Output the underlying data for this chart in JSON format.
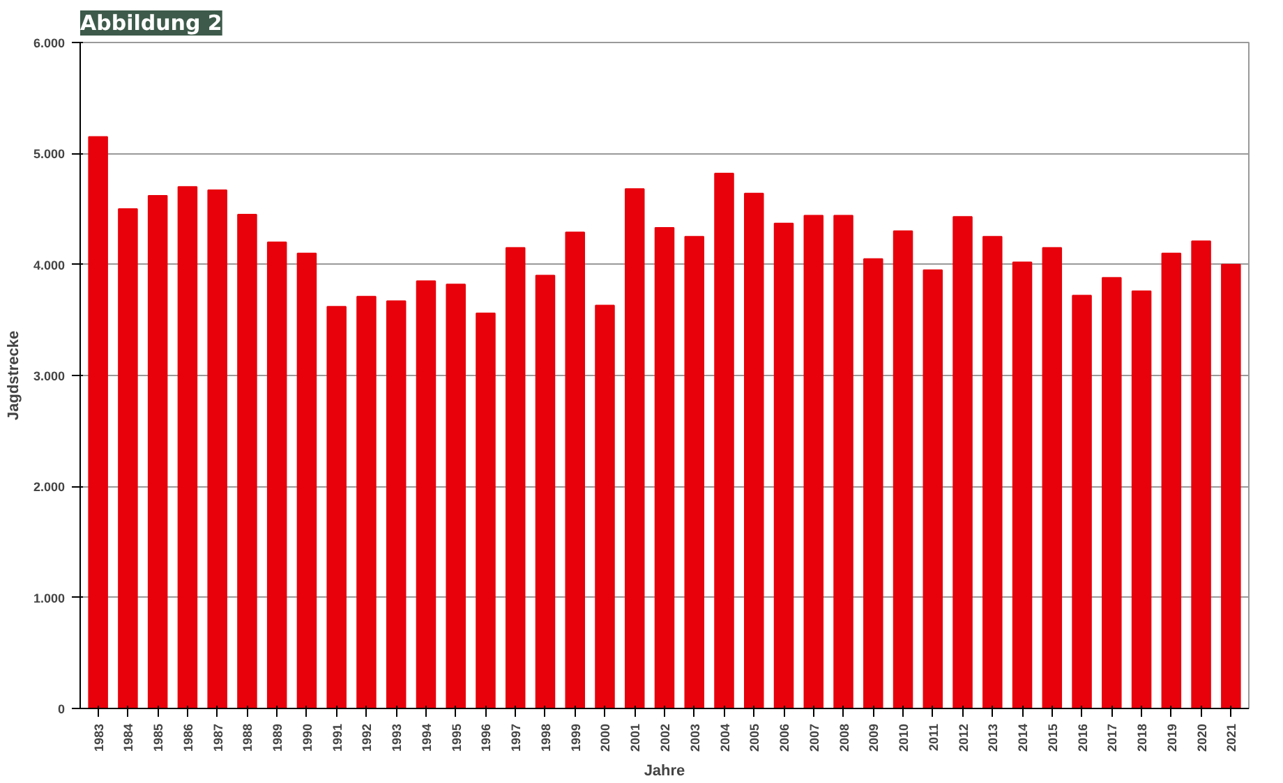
{
  "chart_data": {
    "type": "bar",
    "title": "Abbildung 2",
    "xlabel": "Jahre",
    "ylabel": "Jagdstrecke",
    "categories": [
      "1983",
      "1984",
      "1985",
      "1986",
      "1987",
      "1988",
      "1989",
      "1990",
      "1991",
      "1992",
      "1993",
      "1994",
      "1995",
      "1996",
      "1997",
      "1998",
      "1999",
      "2000",
      "2001",
      "2002",
      "2003",
      "2004",
      "2005",
      "2006",
      "2007",
      "2008",
      "2009",
      "2010",
      "2011",
      "2012",
      "2013",
      "2014",
      "2015",
      "2016",
      "2017",
      "2018",
      "2019",
      "2020",
      "2021"
    ],
    "values": [
      5150,
      4500,
      4620,
      4700,
      4670,
      4450,
      4200,
      4100,
      3620,
      3710,
      3670,
      3850,
      3820,
      3560,
      4150,
      3900,
      4290,
      3630,
      4680,
      4330,
      4250,
      4820,
      4640,
      4370,
      4440,
      4440,
      4050,
      4300,
      3950,
      4430,
      4250,
      4020,
      4150,
      3720,
      3880,
      3760,
      4100,
      4210,
      4000
    ],
    "color": "#e8000b",
    "ylim": [
      0,
      6000
    ],
    "yticks": [
      {
        "value": 0,
        "label": "0"
      },
      {
        "value": 1000,
        "label": "1.000"
      },
      {
        "value": 2000,
        "label": "2.000"
      },
      {
        "value": 3000,
        "label": "3.000"
      },
      {
        "value": 4000,
        "label": "4.000"
      },
      {
        "value": 5000,
        "label": "5.000"
      },
      {
        "value": 6000,
        "label": "6.000"
      }
    ],
    "grid": "y"
  }
}
